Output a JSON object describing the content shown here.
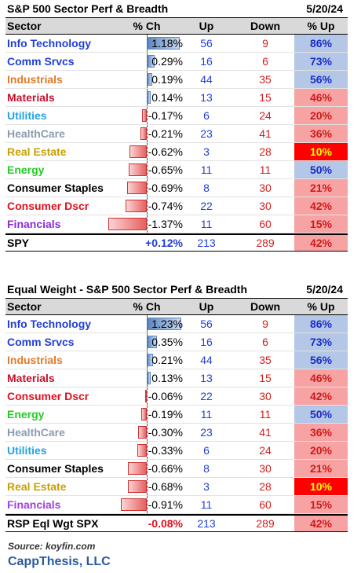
{
  "tables": [
    {
      "title": "S&P 500 Sector Perf & Breadth",
      "date": "5/20/24",
      "headers": {
        "sector": "Sector",
        "ch": "% Ch",
        "up": "Up",
        "down": "Down",
        "pct_up": "% Up"
      },
      "rows": [
        {
          "sector": "Info Technology",
          "color": "#1f3fd6",
          "ch": "1.18%",
          "ch_value": 1.18,
          "up": "56",
          "down": "9",
          "pct_up": "86%",
          "pct_style": "blue"
        },
        {
          "sector": "Comm Srvcs",
          "color": "#1f3fd6",
          "ch": "0.29%",
          "ch_value": 0.29,
          "up": "16",
          "down": "6",
          "pct_up": "73%",
          "pct_style": "blue"
        },
        {
          "sector": "Industrials",
          "color": "#e07a2a",
          "ch": "0.19%",
          "ch_value": 0.19,
          "up": "44",
          "down": "35",
          "pct_up": "56%",
          "pct_style": "blue"
        },
        {
          "sector": "Materials",
          "color": "#c8102e",
          "ch": "0.14%",
          "ch_value": 0.14,
          "up": "13",
          "down": "15",
          "pct_up": "46%",
          "pct_style": "red"
        },
        {
          "sector": "Utilities",
          "color": "#22a4e0",
          "ch": "-0.17%",
          "ch_value": -0.17,
          "up": "6",
          "down": "24",
          "pct_up": "20%",
          "pct_style": "red"
        },
        {
          "sector": "HealthCare",
          "color": "#8c9bb0",
          "ch": "-0.21%",
          "ch_value": -0.21,
          "up": "23",
          "down": "41",
          "pct_up": "36%",
          "pct_style": "red"
        },
        {
          "sector": "Real Estate",
          "color": "#c9a000",
          "ch": "-0.62%",
          "ch_value": -0.62,
          "up": "3",
          "down": "28",
          "pct_up": "10%",
          "pct_style": "hot"
        },
        {
          "sector": "Energy",
          "color": "#22cc22",
          "ch": "-0.65%",
          "ch_value": -0.65,
          "up": "11",
          "down": "11",
          "pct_up": "50%",
          "pct_style": "blue"
        },
        {
          "sector": "Consumer Staples",
          "color": "#000000",
          "ch": "-0.69%",
          "ch_value": -0.69,
          "up": "8",
          "down": "30",
          "pct_up": "21%",
          "pct_style": "red"
        },
        {
          "sector": "Consumer Dscr",
          "color": "#e0101e",
          "ch": "-0.74%",
          "ch_value": -0.74,
          "up": "22",
          "down": "30",
          "pct_up": "42%",
          "pct_style": "red"
        },
        {
          "sector": "Financials",
          "color": "#8a2be2",
          "ch": "-1.37%",
          "ch_value": -1.37,
          "up": "11",
          "down": "60",
          "pct_up": "15%",
          "pct_style": "red"
        }
      ],
      "summary": {
        "sector": "SPY",
        "ch": "+0.12%",
        "ch_color": "#1f3fd6",
        "up": "213",
        "down": "289",
        "pct_up": "42%",
        "pct_style": "red"
      }
    },
    {
      "title": "Equal Weight - S&P 500 Sector Perf & Breadth",
      "date": "5/20/24",
      "headers": {
        "sector": "Sector",
        "ch": "% Ch",
        "up": "Up",
        "down": "Down",
        "pct_up": "% Up"
      },
      "rows": [
        {
          "sector": "Info Technology",
          "color": "#1f3fd6",
          "ch": "1.23%",
          "ch_value": 1.23,
          "up": "56",
          "down": "9",
          "pct_up": "86%",
          "pct_style": "blue"
        },
        {
          "sector": "Comm Srvcs",
          "color": "#1f3fd6",
          "ch": "0.35%",
          "ch_value": 0.35,
          "up": "16",
          "down": "6",
          "pct_up": "73%",
          "pct_style": "blue"
        },
        {
          "sector": "Industrials",
          "color": "#e07a2a",
          "ch": "0.21%",
          "ch_value": 0.21,
          "up": "44",
          "down": "35",
          "pct_up": "56%",
          "pct_style": "blue"
        },
        {
          "sector": "Materials",
          "color": "#c8102e",
          "ch": "0.13%",
          "ch_value": 0.13,
          "up": "13",
          "down": "15",
          "pct_up": "46%",
          "pct_style": "red"
        },
        {
          "sector": "Consumer Dscr",
          "color": "#e0101e",
          "ch": "-0.06%",
          "ch_value": -0.06,
          "up": "22",
          "down": "30",
          "pct_up": "42%",
          "pct_style": "red"
        },
        {
          "sector": "Energy",
          "color": "#22cc22",
          "ch": "-0.19%",
          "ch_value": -0.19,
          "up": "11",
          "down": "11",
          "pct_up": "50%",
          "pct_style": "blue"
        },
        {
          "sector": "HealthCare",
          "color": "#8c9bb0",
          "ch": "-0.30%",
          "ch_value": -0.3,
          "up": "23",
          "down": "41",
          "pct_up": "36%",
          "pct_style": "red"
        },
        {
          "sector": "Utilities",
          "color": "#22a4e0",
          "ch": "-0.33%",
          "ch_value": -0.33,
          "up": "6",
          "down": "24",
          "pct_up": "20%",
          "pct_style": "red"
        },
        {
          "sector": "Consumer Staples",
          "color": "#000000",
          "ch": "-0.66%",
          "ch_value": -0.66,
          "up": "8",
          "down": "30",
          "pct_up": "21%",
          "pct_style": "red"
        },
        {
          "sector": "Real Estate",
          "color": "#c9a000",
          "ch": "-0.68%",
          "ch_value": -0.68,
          "up": "3",
          "down": "28",
          "pct_up": "10%",
          "pct_style": "hot"
        },
        {
          "sector": "Financials",
          "color": "#a040e0",
          "ch": "-0.91%",
          "ch_value": -0.91,
          "up": "11",
          "down": "60",
          "pct_up": "15%",
          "pct_style": "red"
        }
      ],
      "summary": {
        "sector": "RSP Eql Wgt SPX",
        "ch": "-0.08%",
        "ch_color": "#e0101e",
        "up": "213",
        "down": "289",
        "pct_up": "42%",
        "pct_style": "red"
      }
    }
  ],
  "footer": {
    "source": "Source: koyfin.com",
    "brand": "CappThesis, LLC"
  },
  "chart_data": [
    {
      "type": "table",
      "title": "S&P 500 Sector Perf & Breadth",
      "categories": [
        "Info Technology",
        "Comm Srvcs",
        "Industrials",
        "Materials",
        "Utilities",
        "HealthCare",
        "Real Estate",
        "Energy",
        "Consumer Staples",
        "Consumer Dscr",
        "Financials",
        "SPY"
      ],
      "series": [
        {
          "name": "% Ch",
          "values": [
            1.18,
            0.29,
            0.19,
            0.14,
            -0.17,
            -0.21,
            -0.62,
            -0.65,
            -0.69,
            -0.74,
            -1.37,
            0.12
          ]
        },
        {
          "name": "Up",
          "values": [
            56,
            16,
            44,
            13,
            6,
            23,
            3,
            11,
            8,
            22,
            11,
            213
          ]
        },
        {
          "name": "Down",
          "values": [
            9,
            6,
            35,
            15,
            24,
            41,
            28,
            11,
            30,
            30,
            60,
            289
          ]
        },
        {
          "name": "% Up",
          "values": [
            86,
            73,
            56,
            46,
            20,
            36,
            10,
            50,
            21,
            42,
            15,
            42
          ]
        }
      ]
    },
    {
      "type": "table",
      "title": "Equal Weight - S&P 500 Sector Perf & Breadth",
      "categories": [
        "Info Technology",
        "Comm Srvcs",
        "Industrials",
        "Materials",
        "Consumer Dscr",
        "Energy",
        "HealthCare",
        "Utilities",
        "Consumer Staples",
        "Real Estate",
        "Financials",
        "RSP Eql Wgt SPX"
      ],
      "series": [
        {
          "name": "% Ch",
          "values": [
            1.23,
            0.35,
            0.21,
            0.13,
            -0.06,
            -0.19,
            -0.3,
            -0.33,
            -0.66,
            -0.68,
            -0.91,
            -0.08
          ]
        },
        {
          "name": "Up",
          "values": [
            56,
            16,
            44,
            13,
            22,
            11,
            23,
            6,
            8,
            3,
            11,
            213
          ]
        },
        {
          "name": "Down",
          "values": [
            9,
            6,
            35,
            15,
            30,
            11,
            41,
            24,
            30,
            28,
            60,
            289
          ]
        },
        {
          "name": "% Up",
          "values": [
            86,
            73,
            56,
            46,
            42,
            50,
            36,
            20,
            21,
            10,
            15,
            42
          ]
        }
      ]
    }
  ]
}
